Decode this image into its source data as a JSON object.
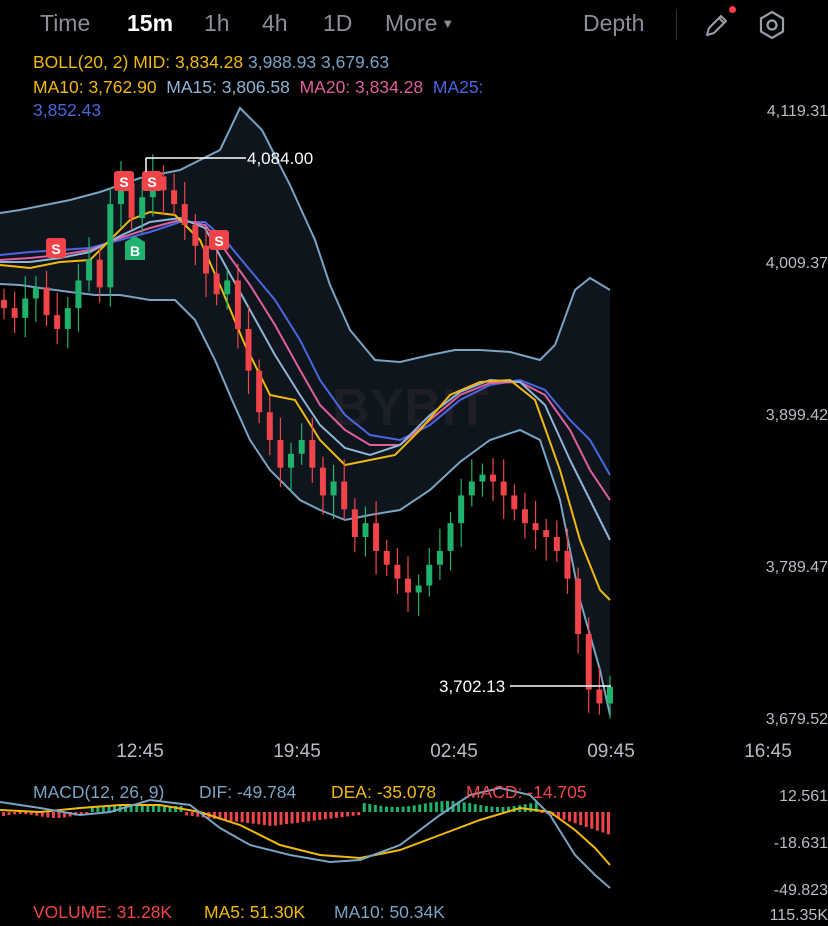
{
  "tabs": [
    {
      "label": "Time",
      "active": false
    },
    {
      "label": "15m",
      "active": true
    },
    {
      "label": "1h",
      "active": false
    },
    {
      "label": "4h",
      "active": false
    },
    {
      "label": "1D",
      "active": false
    },
    {
      "label": "More",
      "active": false
    }
  ],
  "depth_label": "Depth",
  "icons": {
    "draw": "pencil-icon",
    "settings": "hexagon-settings-icon",
    "more_caret": "caret-down-icon"
  },
  "indicators": {
    "boll_label": "BOLL(20, 2)",
    "boll_mid": "MID: 3,834.28",
    "boll_upper": "3,988.93",
    "boll_lower": "3,679.63",
    "ma10": "MA10: 3,762.90",
    "ma15": "MA15: 3,806.58",
    "ma20": "MA20: 3,834.28",
    "ma25_label": "MA25:",
    "ma25_value": "3,852.43"
  },
  "price_axis": [
    "4,119.31",
    "4,009.37",
    "3,899.42",
    "3,789.47",
    "3,679.52"
  ],
  "time_axis": [
    "12:45",
    "19:45",
    "02:45",
    "09:45",
    "16:45"
  ],
  "high_marker": "4,084.00",
  "last_marker": "3,702.13",
  "watermark": "BYBIT",
  "macd": {
    "label": "MACD(12, 26, 9)",
    "dif": "DIF: -49.784",
    "dea": "DEA: -35.078",
    "macd": "MACD: -14.705",
    "axis": [
      "12.561",
      "-18.631",
      "-49.823"
    ]
  },
  "volume": {
    "label": "VOLUME: 31.28K",
    "ma5": "MA5: 51.30K",
    "ma10": "MA10: 50.34K",
    "axis": "115.35K"
  },
  "trade_marks": [
    {
      "type": "S"
    },
    {
      "type": "S"
    },
    {
      "type": "S"
    },
    {
      "type": "B"
    },
    {
      "type": "S"
    }
  ],
  "colors": {
    "up": "#20b26c",
    "down": "#ef454a",
    "boll": "#7aa3c4",
    "ma10": "#f0b90b",
    "ma15": "#8fb4d8",
    "ma20": "#e05fa0",
    "ma25": "#4a66e0",
    "dif": "#7aa3c4",
    "dea": "#f0b90b"
  },
  "chart_data": {
    "type": "candlestick",
    "price_range": [
      3679.52,
      4119.31
    ],
    "x_ticks": [
      "12:45",
      "19:45",
      "02:45",
      "09:45",
      "16:45"
    ],
    "high": 4084.0,
    "last": 3702.13,
    "close_series": [
      3975,
      3968,
      3982,
      3990,
      3970,
      3960,
      3975,
      3995,
      4010,
      3990,
      4050,
      4065,
      4040,
      4055,
      4070,
      4060,
      4050,
      4035,
      4020,
      4000,
      3985,
      3995,
      3960,
      3930,
      3900,
      3880,
      3860,
      3870,
      3880,
      3860,
      3840,
      3850,
      3830,
      3810,
      3820,
      3800,
      3790,
      3780,
      3770,
      3775,
      3790,
      3800,
      3820,
      3840,
      3850,
      3855,
      3850,
      3840,
      3830,
      3820,
      3815,
      3810,
      3800,
      3780,
      3740,
      3700,
      3690,
      3702
    ],
    "boll": {
      "upper": 3988.93,
      "mid": 3834.28,
      "lower": 3679.63
    },
    "ma": {
      "MA10": 3762.9,
      "MA15": 3806.58,
      "MA20": 3834.28,
      "MA25": 3852.43
    },
    "macd": {
      "DIF": -49.784,
      "DEA": -35.078,
      "MACD": -14.705,
      "axis": [
        12.561,
        -18.631,
        -49.823
      ]
    },
    "volume": {
      "VOLUME": "31.28K",
      "MA5": "51.30K",
      "MA10": "50.34K",
      "max": "115.35K"
    }
  }
}
